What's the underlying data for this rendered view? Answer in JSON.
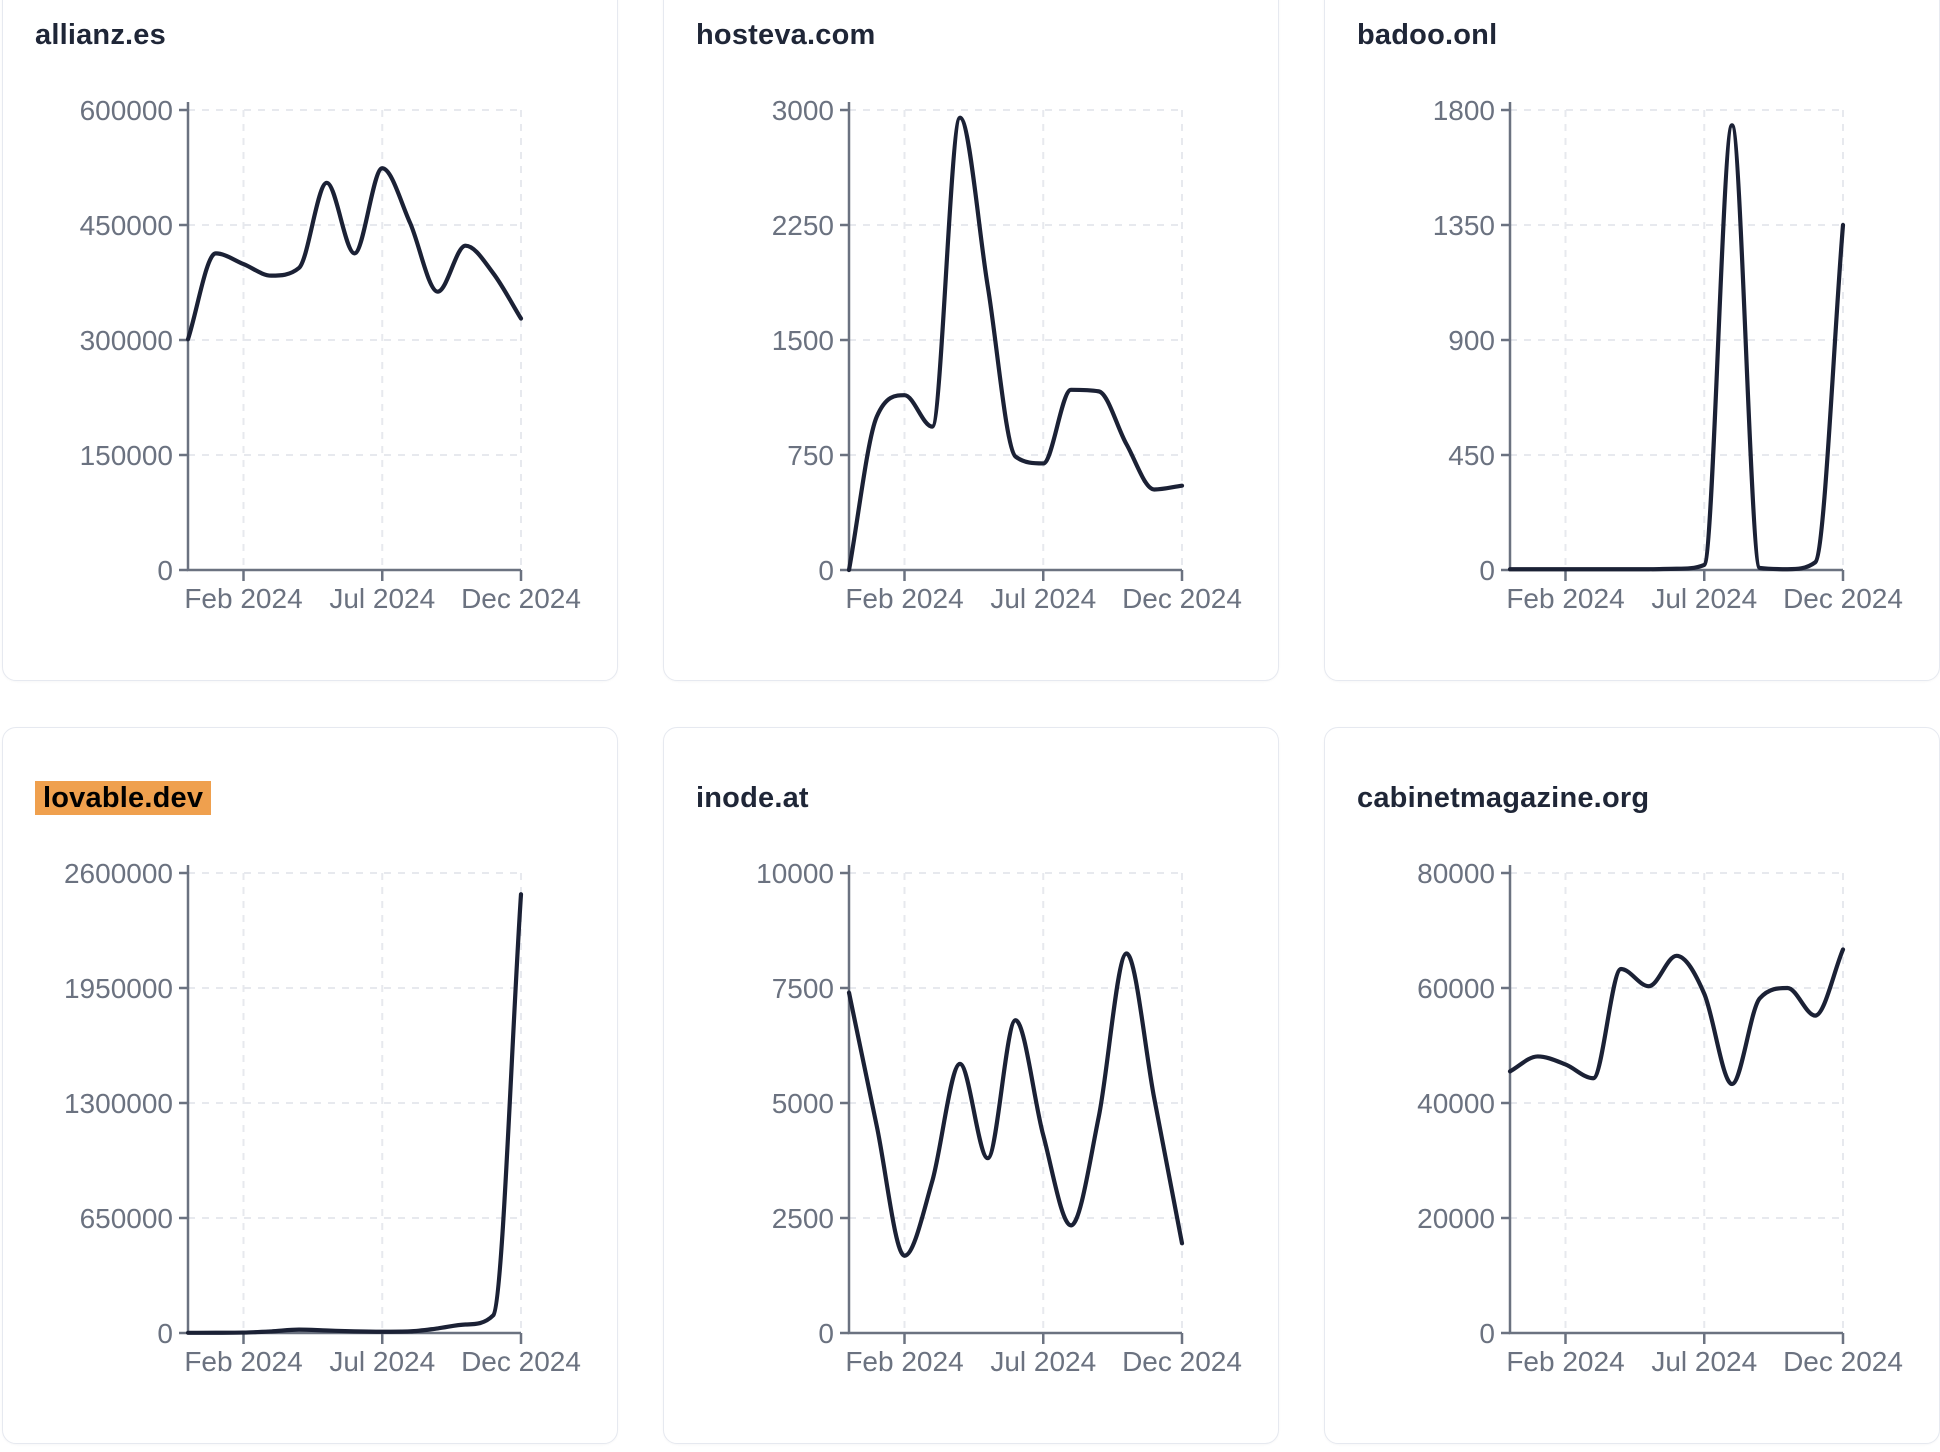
{
  "styles": {
    "line_color": "#1b2135",
    "axis_color": "#6b7280",
    "grid_color": "#e7e9ee",
    "title_color": "#1f2637",
    "card_border_color": "#e6e9f0",
    "highlight_color": "#efa04e",
    "highlight_text_color": "#000000"
  },
  "chart_data": [
    {
      "type": "line",
      "title": "allianz.es",
      "highlighted": false,
      "x_ticks": [
        {
          "label": "Feb 2024",
          "index": 2
        },
        {
          "label": "Jul 2024",
          "index": 7
        },
        {
          "label": "Dec 2024",
          "index": 12
        }
      ],
      "y_ticks": [
        0,
        150000,
        300000,
        450000,
        600000
      ],
      "ylim": [
        0,
        600000
      ],
      "grid": true,
      "values": [
        301000,
        413000,
        399000,
        384000,
        394000,
        505000,
        413000,
        524000,
        453000,
        363000,
        423000,
        387000,
        328000
      ]
    },
    {
      "type": "line",
      "title": "hosteva.com",
      "highlighted": false,
      "x_ticks": [
        {
          "label": "Feb 2024",
          "index": 2
        },
        {
          "label": "Jul 2024",
          "index": 7
        },
        {
          "label": "Dec 2024",
          "index": 12
        }
      ],
      "y_ticks": [
        0,
        750,
        1500,
        2250,
        3000
      ],
      "ylim": [
        0,
        3000
      ],
      "grid": true,
      "values": [
        0,
        1000,
        1140,
        935,
        2950,
        1850,
        740,
        695,
        1175,
        1165,
        820,
        525,
        550
      ]
    },
    {
      "type": "line",
      "title": "badoo.onl",
      "highlighted": false,
      "x_ticks": [
        {
          "label": "Feb 2024",
          "index": 2
        },
        {
          "label": "Jul 2024",
          "index": 7
        },
        {
          "label": "Dec 2024",
          "index": 12
        }
      ],
      "y_ticks": [
        0,
        450,
        900,
        1350,
        1800
      ],
      "ylim": [
        0,
        1800
      ],
      "grid": true,
      "values": [
        3,
        3,
        3,
        3,
        3,
        3,
        5,
        20,
        1740,
        8,
        3,
        30,
        1350
      ]
    },
    {
      "type": "line",
      "title": "lovable.dev",
      "highlighted": true,
      "x_ticks": [
        {
          "label": "Feb 2024",
          "index": 2
        },
        {
          "label": "Jul 2024",
          "index": 7
        },
        {
          "label": "Dec 2024",
          "index": 12
        }
      ],
      "y_ticks": [
        0,
        650000,
        1300000,
        1950000,
        2600000
      ],
      "ylim": [
        0,
        2600000
      ],
      "grid": true,
      "values": [
        1000,
        1500,
        2500,
        9000,
        19000,
        14000,
        9000,
        7000,
        9000,
        26000,
        48000,
        100000,
        2480000
      ]
    },
    {
      "type": "line",
      "title": "inode.at",
      "highlighted": false,
      "x_ticks": [
        {
          "label": "Feb 2024",
          "index": 2
        },
        {
          "label": "Jul 2024",
          "index": 7
        },
        {
          "label": "Dec 2024",
          "index": 12
        }
      ],
      "y_ticks": [
        0,
        2500,
        5000,
        7500,
        10000
      ],
      "ylim": [
        0,
        10000
      ],
      "grid": true,
      "values": [
        7400,
        4500,
        1680,
        3300,
        5850,
        3800,
        6800,
        4300,
        2340,
        4700,
        8250,
        5100,
        1950
      ]
    },
    {
      "type": "line",
      "title": "cabinetmagazine.org",
      "highlighted": false,
      "x_ticks": [
        {
          "label": "Feb 2024",
          "index": 2
        },
        {
          "label": "Jul 2024",
          "index": 7
        },
        {
          "label": "Dec 2024",
          "index": 12
        }
      ],
      "y_ticks": [
        0,
        20000,
        40000,
        60000,
        80000
      ],
      "ylim": [
        0,
        80000
      ],
      "grid": true,
      "values": [
        45500,
        48100,
        46700,
        44300,
        63300,
        60300,
        65600,
        59000,
        43300,
        58200,
        60000,
        55200,
        66700
      ]
    }
  ]
}
